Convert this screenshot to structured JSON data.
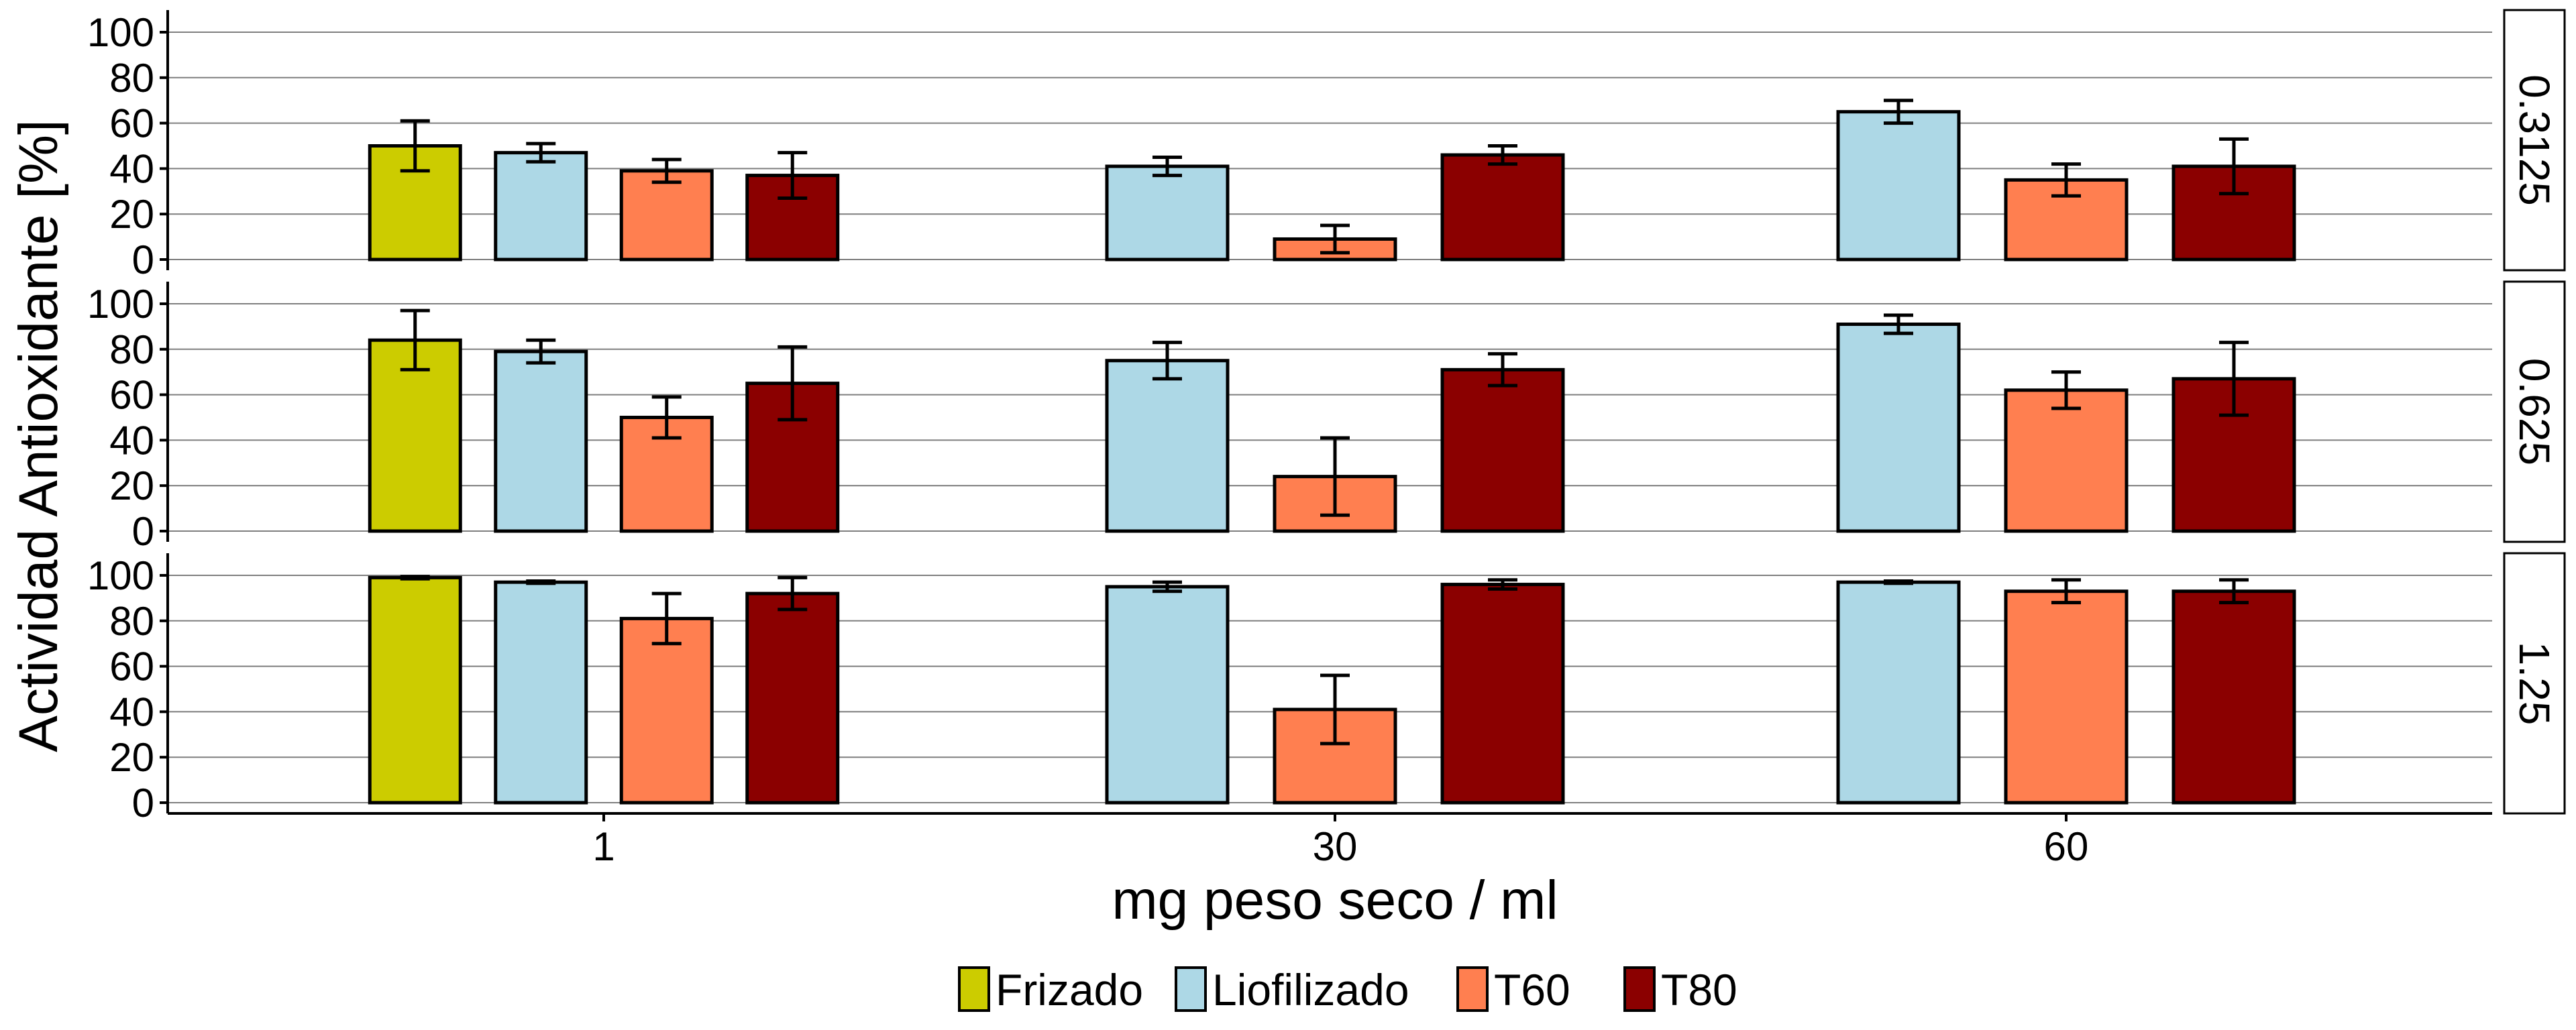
{
  "chart_data": {
    "type": "bar",
    "facet_by": "concentration",
    "ylabel": "Actividad Antioxidante [%]",
    "xlabel": "mg peso seco / ml",
    "x_categories": [
      "1",
      "30",
      "60"
    ],
    "ylim": [
      0,
      100
    ],
    "y_ticks": [
      0,
      20,
      40,
      60,
      80,
      100
    ],
    "grid": true,
    "legend_position": "bottom",
    "legend": [
      {
        "name": "Frizado",
        "color": "#cccc00"
      },
      {
        "name": "Liofilizado",
        "color": "#add8e6"
      },
      {
        "name": "T60",
        "color": "#ff7f50"
      },
      {
        "name": "T80",
        "color": "#8b0000"
      }
    ],
    "panels": [
      {
        "label": "0.3125",
        "groups": [
          {
            "x": "1",
            "bars": [
              {
                "series": "Frizado",
                "value": 50,
                "err": 11
              },
              {
                "series": "Liofilizado",
                "value": 47,
                "err": 4
              },
              {
                "series": "T60",
                "value": 39,
                "err": 5
              },
              {
                "series": "T80",
                "value": 37,
                "err": 10
              }
            ]
          },
          {
            "x": "30",
            "bars": [
              {
                "series": "Liofilizado",
                "value": 41,
                "err": 4
              },
              {
                "series": "T60",
                "value": 9,
                "err": 6
              },
              {
                "series": "T80",
                "value": 46,
                "err": 4
              }
            ]
          },
          {
            "x": "60",
            "bars": [
              {
                "series": "Liofilizado",
                "value": 65,
                "err": 5
              },
              {
                "series": "T60",
                "value": 35,
                "err": 7
              },
              {
                "series": "T80",
                "value": 41,
                "err": 12
              }
            ]
          }
        ]
      },
      {
        "label": "0.625",
        "groups": [
          {
            "x": "1",
            "bars": [
              {
                "series": "Frizado",
                "value": 84,
                "err": 13
              },
              {
                "series": "Liofilizado",
                "value": 79,
                "err": 5
              },
              {
                "series": "T60",
                "value": 50,
                "err": 9
              },
              {
                "series": "T80",
                "value": 65,
                "err": 16
              }
            ]
          },
          {
            "x": "30",
            "bars": [
              {
                "series": "Liofilizado",
                "value": 75,
                "err": 8
              },
              {
                "series": "T60",
                "value": 24,
                "err": 17
              },
              {
                "series": "T80",
                "value": 71,
                "err": 7
              }
            ]
          },
          {
            "x": "60",
            "bars": [
              {
                "series": "Liofilizado",
                "value": 91,
                "err": 4
              },
              {
                "series": "T60",
                "value": 62,
                "err": 8
              },
              {
                "series": "T80",
                "value": 67,
                "err": 16
              }
            ]
          }
        ]
      },
      {
        "label": "1.25",
        "groups": [
          {
            "x": "1",
            "bars": [
              {
                "series": "Frizado",
                "value": 99,
                "err": 0.5
              },
              {
                "series": "Liofilizado",
                "value": 97,
                "err": 0.5
              },
              {
                "series": "T60",
                "value": 81,
                "err": 11
              },
              {
                "series": "T80",
                "value": 92,
                "err": 7
              }
            ]
          },
          {
            "x": "30",
            "bars": [
              {
                "series": "Liofilizado",
                "value": 95,
                "err": 2
              },
              {
                "series": "T60",
                "value": 41,
                "err": 15
              },
              {
                "series": "T80",
                "value": 96,
                "err": 2
              }
            ]
          },
          {
            "x": "60",
            "bars": [
              {
                "series": "Liofilizado",
                "value": 97,
                "err": 0.5
              },
              {
                "series": "T60",
                "value": 93,
                "err": 5
              },
              {
                "series": "T80",
                "value": 93,
                "err": 5
              }
            ]
          }
        ]
      }
    ]
  }
}
